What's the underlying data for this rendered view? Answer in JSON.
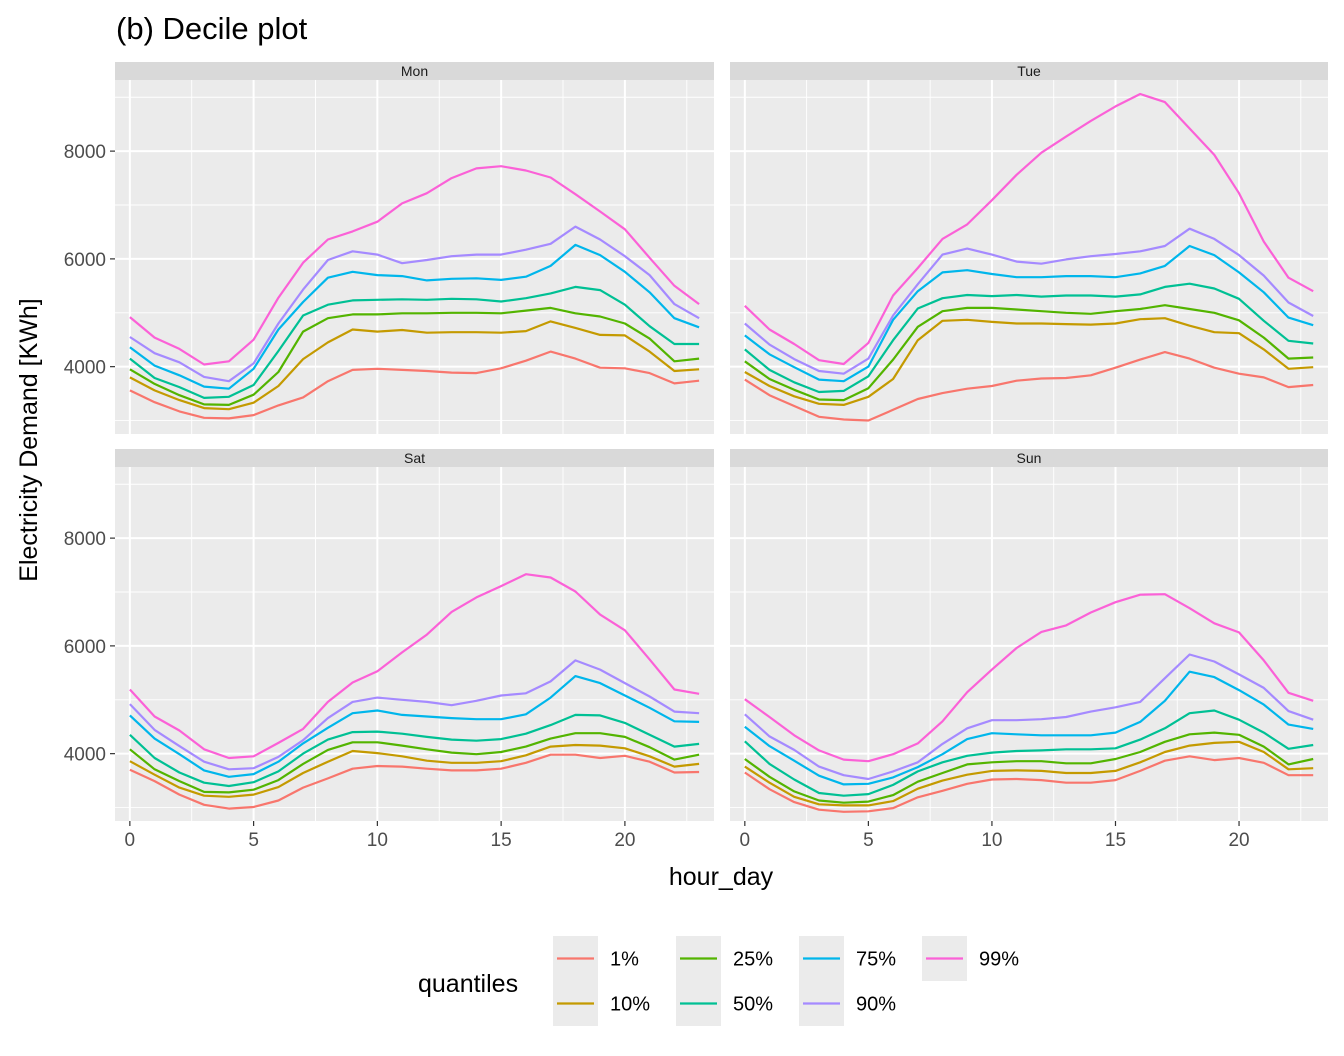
{
  "chart_data": {
    "type": "line",
    "title": "(b) Decile plot",
    "xlabel": "hour_day",
    "ylabel": "Electricity Demand [KWh]",
    "xlim": [
      -0.6,
      23.6
    ],
    "ylim": [
      2750,
      9320
    ],
    "x_ticks": [
      0,
      5,
      10,
      15,
      20
    ],
    "y_ticks": [
      4000,
      6000,
      8000
    ],
    "grid": true,
    "legend_title": "quantiles",
    "legend_position": "bottom",
    "series_meta": [
      {
        "name": "1%",
        "color": "#F8766D"
      },
      {
        "name": "10%",
        "color": "#C49A00"
      },
      {
        "name": "25%",
        "color": "#53B400"
      },
      {
        "name": "50%",
        "color": "#00C094"
      },
      {
        "name": "75%",
        "color": "#00B6EB"
      },
      {
        "name": "90%",
        "color": "#A58AFF"
      },
      {
        "name": "99%",
        "color": "#FB61D7"
      }
    ],
    "x": [
      0,
      1,
      2,
      3,
      4,
      5,
      6,
      7,
      8,
      9,
      10,
      11,
      12,
      13,
      14,
      15,
      16,
      17,
      18,
      19,
      20,
      21,
      22,
      23
    ],
    "panels": [
      {
        "label": "Mon",
        "series": [
          {
            "name": "1%",
            "values": [
              3560,
              3340,
              3170,
              3050,
              3040,
              3100,
              3280,
              3430,
              3730,
              3940,
              3960,
              3940,
              3920,
              3890,
              3880,
              3970,
              4110,
              4280,
              4150,
              3980,
              3970,
              3880,
              3690,
              3740
            ]
          },
          {
            "name": "10%",
            "values": [
              3800,
              3560,
              3380,
              3230,
              3210,
              3330,
              3640,
              4140,
              4450,
              4690,
              4650,
              4680,
              4630,
              4640,
              4640,
              4630,
              4660,
              4840,
              4720,
              4590,
              4580,
              4280,
              3920,
              3950
            ]
          },
          {
            "name": "25%",
            "values": [
              3950,
              3680,
              3470,
              3300,
              3290,
              3480,
              3900,
              4650,
              4900,
              4970,
              4970,
              4990,
              4990,
              5000,
              5000,
              4990,
              5040,
              5090,
              4990,
              4930,
              4800,
              4520,
              4100,
              4150
            ]
          },
          {
            "name": "50%",
            "values": [
              4150,
              3790,
              3620,
              3420,
              3440,
              3660,
              4290,
              4950,
              5150,
              5230,
              5240,
              5250,
              5240,
              5260,
              5250,
              5210,
              5270,
              5360,
              5480,
              5420,
              5150,
              4750,
              4420,
              4420
            ]
          },
          {
            "name": "75%",
            "values": [
              4360,
              4020,
              3840,
              3630,
              3590,
              3960,
              4690,
              5200,
              5650,
              5760,
              5700,
              5680,
              5600,
              5630,
              5640,
              5610,
              5670,
              5870,
              6260,
              6070,
              5760,
              5380,
              4900,
              4730
            ]
          },
          {
            "name": "90%",
            "values": [
              4550,
              4250,
              4080,
              3810,
              3730,
              4060,
              4800,
              5430,
              5980,
              6140,
              6080,
              5920,
              5980,
              6050,
              6080,
              6080,
              6170,
              6280,
              6600,
              6360,
              6050,
              5700,
              5160,
              4900
            ]
          },
          {
            "name": "99%",
            "values": [
              4920,
              4540,
              4330,
              4040,
              4100,
              4500,
              5280,
              5930,
              6360,
              6510,
              6690,
              7030,
              7220,
              7500,
              7680,
              7720,
              7640,
              7510,
              7200,
              6880,
              6550,
              6020,
              5500,
              5160
            ]
          }
        ]
      },
      {
        "label": "Tue",
        "series": [
          {
            "name": "1%",
            "values": [
              3760,
              3470,
              3270,
              3070,
              3020,
              3000,
              3200,
              3400,
              3510,
              3590,
              3640,
              3740,
              3780,
              3790,
              3840,
              3980,
              4130,
              4270,
              4150,
              3980,
              3870,
              3800,
              3620,
              3660
            ]
          },
          {
            "name": "10%",
            "values": [
              3900,
              3640,
              3450,
              3310,
              3290,
              3440,
              3770,
              4490,
              4850,
              4870,
              4830,
              4800,
              4800,
              4790,
              4780,
              4800,
              4880,
              4900,
              4760,
              4640,
              4620,
              4320,
              3960,
              3990
            ]
          },
          {
            "name": "25%",
            "values": [
              4100,
              3770,
              3570,
              3390,
              3380,
              3600,
              4130,
              4740,
              5030,
              5090,
              5090,
              5060,
              5030,
              5000,
              4980,
              5030,
              5070,
              5140,
              5070,
              5000,
              4860,
              4540,
              4150,
              4170
            ]
          },
          {
            "name": "50%",
            "values": [
              4320,
              3940,
              3710,
              3530,
              3550,
              3820,
              4490,
              5080,
              5270,
              5330,
              5310,
              5330,
              5300,
              5320,
              5320,
              5300,
              5340,
              5480,
              5540,
              5450,
              5260,
              4850,
              4480,
              4430
            ]
          },
          {
            "name": "75%",
            "values": [
              4580,
              4230,
              3990,
              3760,
              3730,
              4000,
              4870,
              5400,
              5750,
              5790,
              5720,
              5660,
              5660,
              5680,
              5680,
              5660,
              5730,
              5870,
              6240,
              6070,
              5750,
              5380,
              4910,
              4770
            ]
          },
          {
            "name": "90%",
            "values": [
              4800,
              4410,
              4140,
              3920,
              3870,
              4150,
              4950,
              5530,
              6080,
              6190,
              6080,
              5950,
              5910,
              5990,
              6050,
              6090,
              6140,
              6240,
              6560,
              6370,
              6070,
              5690,
              5190,
              4940
            ]
          },
          {
            "name": "99%",
            "values": [
              5130,
              4690,
              4420,
              4120,
              4050,
              4440,
              5320,
              5830,
              6370,
              6640,
              7090,
              7560,
              7970,
              8270,
              8560,
              8830,
              9060,
              8910,
              8420,
              7930,
              7220,
              6320,
              5650,
              5400
            ]
          }
        ]
      },
      {
        "label": "Sat",
        "series": [
          {
            "name": "1%",
            "values": [
              3700,
              3490,
              3240,
              3050,
              2980,
              3010,
              3130,
              3370,
              3540,
              3720,
              3770,
              3760,
              3720,
              3690,
              3690,
              3720,
              3830,
              3980,
              3980,
              3920,
              3960,
              3850,
              3650,
              3660
            ]
          },
          {
            "name": "10%",
            "values": [
              3860,
              3610,
              3370,
              3220,
              3200,
              3240,
              3380,
              3640,
              3850,
              4050,
              4010,
              3950,
              3870,
              3830,
              3830,
              3860,
              3970,
              4130,
              4160,
              4150,
              4100,
              3950,
              3760,
              3810
            ]
          },
          {
            "name": "25%",
            "values": [
              4080,
              3710,
              3490,
              3290,
              3280,
              3330,
              3510,
              3810,
              4070,
              4210,
              4210,
              4150,
              4080,
              4020,
              3990,
              4030,
              4130,
              4280,
              4380,
              4380,
              4310,
              4120,
              3890,
              3980
            ]
          },
          {
            "name": "50%",
            "values": [
              4350,
              3920,
              3650,
              3460,
              3400,
              3470,
              3670,
              4000,
              4260,
              4400,
              4410,
              4370,
              4310,
              4260,
              4240,
              4270,
              4370,
              4530,
              4720,
              4710,
              4570,
              4350,
              4130,
              4180
            ]
          },
          {
            "name": "75%",
            "values": [
              4710,
              4280,
              3990,
              3690,
              3570,
              3620,
              3850,
              4190,
              4480,
              4750,
              4800,
              4720,
              4690,
              4660,
              4640,
              4640,
              4730,
              5040,
              5440,
              5310,
              5080,
              4850,
              4600,
              4590
            ]
          },
          {
            "name": "90%",
            "values": [
              4920,
              4440,
              4140,
              3850,
              3710,
              3730,
              3940,
              4250,
              4660,
              4960,
              5040,
              5000,
              4960,
              4900,
              4980,
              5080,
              5120,
              5340,
              5730,
              5560,
              5310,
              5060,
              4780,
              4750
            ]
          },
          {
            "name": "99%",
            "values": [
              5190,
              4690,
              4430,
              4080,
              3920,
              3950,
              4200,
              4460,
              4960,
              5320,
              5530,
              5880,
              6210,
              6630,
              6900,
              7110,
              7330,
              7270,
              7010,
              6580,
              6290,
              5750,
              5190,
              5110
            ]
          }
        ]
      },
      {
        "label": "Sun",
        "series": [
          {
            "name": "1%",
            "values": [
              3650,
              3340,
              3100,
              2960,
              2920,
              2930,
              2990,
              3190,
              3310,
              3440,
              3520,
              3530,
              3510,
              3460,
              3460,
              3510,
              3680,
              3870,
              3950,
              3880,
              3920,
              3830,
              3600,
              3600
            ]
          },
          {
            "name": "10%",
            "values": [
              3760,
              3460,
              3200,
              3060,
              3040,
              3040,
              3120,
              3350,
              3500,
              3610,
              3680,
              3690,
              3680,
              3640,
              3640,
              3680,
              3840,
              4030,
              4150,
              4200,
              4220,
              4030,
              3710,
              3730
            ]
          },
          {
            "name": "25%",
            "values": [
              3900,
              3570,
              3300,
              3130,
              3090,
              3110,
              3230,
              3480,
              3640,
              3800,
              3840,
              3860,
              3860,
              3820,
              3820,
              3900,
              4030,
              4220,
              4360,
              4390,
              4350,
              4130,
              3800,
              3900
            ]
          },
          {
            "name": "50%",
            "values": [
              4230,
              3810,
              3520,
              3270,
              3220,
              3250,
              3420,
              3670,
              3840,
              3960,
              4020,
              4050,
              4060,
              4080,
              4080,
              4100,
              4260,
              4470,
              4750,
              4800,
              4630,
              4390,
              4090,
              4160
            ]
          },
          {
            "name": "75%",
            "values": [
              4500,
              4140,
              3870,
              3590,
              3430,
              3440,
              3560,
              3750,
              3990,
              4270,
              4380,
              4360,
              4340,
              4340,
              4340,
              4390,
              4590,
              4980,
              5520,
              5420,
              5180,
              4910,
              4540,
              4460
            ]
          },
          {
            "name": "90%",
            "values": [
              4730,
              4320,
              4070,
              3760,
              3600,
              3530,
              3670,
              3840,
              4180,
              4470,
              4620,
              4620,
              4640,
              4680,
              4780,
              4860,
              4960,
              5400,
              5840,
              5710,
              5470,
              5220,
              4790,
              4630
            ]
          },
          {
            "name": "99%",
            "values": [
              5010,
              4680,
              4340,
              4060,
              3890,
              3860,
              3990,
              4190,
              4600,
              5140,
              5560,
              5960,
              6260,
              6380,
              6620,
              6810,
              6950,
              6960,
              6700,
              6420,
              6250,
              5730,
              5130,
              4980
            ]
          }
        ]
      }
    ]
  }
}
